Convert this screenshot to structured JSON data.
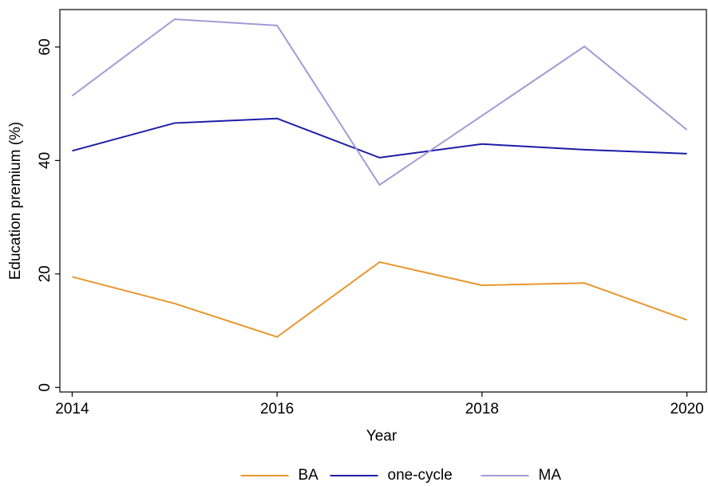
{
  "chart_data": {
    "type": "line",
    "x": [
      2014,
      2015,
      2016,
      2017,
      2018,
      2019,
      2020
    ],
    "x_label": "Year",
    "y_label": "Education premium (%)",
    "series": [
      {
        "name": "BA",
        "color": "#e8962e",
        "values": [
          19.5,
          14.8,
          8.9,
          22.1,
          18.0,
          18.4,
          11.9
        ]
      },
      {
        "name": "one-cycle",
        "color": "#1c1ca6",
        "values": [
          41.7,
          46.6,
          47.4,
          40.5,
          42.9,
          41.9,
          41.2
        ]
      },
      {
        "name": "MA",
        "color": "#a29bd6",
        "values": [
          51.4,
          64.9,
          63.8,
          35.7,
          47.9,
          60.1,
          45.4
        ]
      }
    ],
    "xlim": [
      2013.88,
      2020.19
    ],
    "ylim": [
      -0.8,
      66.6
    ],
    "xticks": [
      2014,
      2016,
      2018,
      2020
    ],
    "yticks": [
      0,
      20,
      40,
      60
    ],
    "grid": false,
    "legend": "bottom"
  }
}
